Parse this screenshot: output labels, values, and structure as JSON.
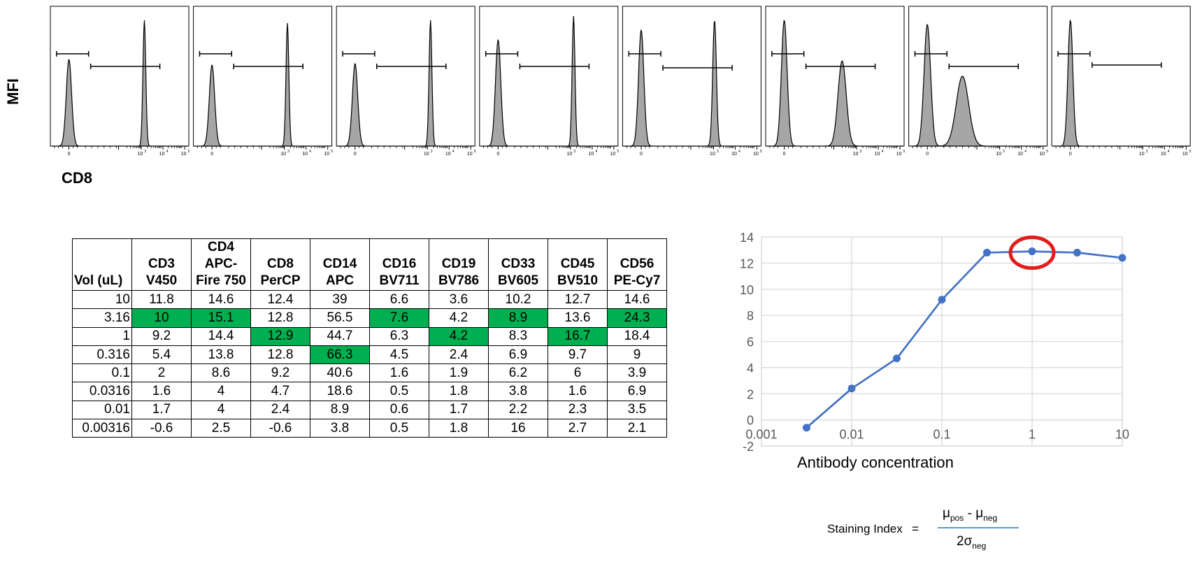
{
  "histograms": {
    "y_label": "MFI",
    "x_label": "CD8",
    "x_tick_labels": [
      "0",
      "10",
      "3",
      "10",
      "4",
      "10",
      "5"
    ],
    "fill_color": "#a6a6a6",
    "panels": [
      {
        "peaks": [
          {
            "x": -0.5,
            "h": 0.62,
            "w": 0.13
          },
          {
            "x": 3.15,
            "h": 0.9,
            "w": 0.07
          }
        ],
        "neg_gate": [
          -1.1,
          0.45
        ],
        "pos_gate": [
          0.55,
          3.9
        ],
        "neg_gate_h": 0.66,
        "pos_gate_h": 0.57
      },
      {
        "peaks": [
          {
            "x": -0.5,
            "h": 0.58,
            "w": 0.13
          },
          {
            "x": 3.15,
            "h": 0.88,
            "w": 0.07
          }
        ],
        "neg_gate": [
          -1.1,
          0.45
        ],
        "pos_gate": [
          0.55,
          3.9
        ],
        "neg_gate_h": 0.66,
        "pos_gate_h": 0.57
      },
      {
        "peaks": [
          {
            "x": -0.5,
            "h": 0.59,
            "w": 0.13
          },
          {
            "x": 3.15,
            "h": 0.9,
            "w": 0.07
          }
        ],
        "neg_gate": [
          -1.1,
          0.45
        ],
        "pos_gate": [
          0.55,
          3.9
        ],
        "neg_gate_h": 0.66,
        "pos_gate_h": 0.57
      },
      {
        "peaks": [
          {
            "x": -0.5,
            "h": 0.76,
            "w": 0.13
          },
          {
            "x": 3.15,
            "h": 0.93,
            "w": 0.07
          }
        ],
        "neg_gate": [
          -1.1,
          0.45
        ],
        "pos_gate": [
          0.55,
          3.9
        ],
        "neg_gate_h": 0.66,
        "pos_gate_h": 0.57
      },
      {
        "peaks": [
          {
            "x": -0.5,
            "h": 0.83,
            "w": 0.13
          },
          {
            "x": 3.05,
            "h": 0.9,
            "w": 0.09
          }
        ],
        "neg_gate": [
          -1.1,
          0.45
        ],
        "pos_gate": [
          0.55,
          3.9
        ],
        "neg_gate_h": 0.66,
        "pos_gate_h": 0.56
      },
      {
        "peaks": [
          {
            "x": -0.5,
            "h": 0.9,
            "w": 0.14
          },
          {
            "x": 2.3,
            "h": 0.61,
            "w": 0.2
          }
        ],
        "neg_gate": [
          -1.1,
          0.45
        ],
        "pos_gate": [
          0.55,
          3.9
        ],
        "neg_gate_h": 0.66,
        "pos_gate_h": 0.57
      },
      {
        "peaks": [
          {
            "x": -0.5,
            "h": 0.87,
            "w": 0.16
          },
          {
            "x": 1.2,
            "h": 0.5,
            "w": 0.3
          }
        ],
        "neg_gate": [
          -1.1,
          0.45
        ],
        "pos_gate": [
          0.55,
          3.9
        ],
        "neg_gate_h": 0.66,
        "pos_gate_h": 0.57
      },
      {
        "peaks": [
          {
            "x": -0.5,
            "h": 0.9,
            "w": 0.12
          }
        ],
        "neg_gate": [
          -1.1,
          0.45
        ],
        "pos_gate": [
          0.55,
          3.9
        ],
        "neg_gate_h": 0.66,
        "pos_gate_h": 0.58
      }
    ]
  },
  "table": {
    "headers": [
      [
        "Vol (uL)"
      ],
      [
        "CD3",
        "V450"
      ],
      [
        "CD4",
        "APC-",
        "Fire 750"
      ],
      [
        "CD8",
        "PerCP"
      ],
      [
        "CD14",
        "APC"
      ],
      [
        "CD16",
        "BV711"
      ],
      [
        "CD19",
        "BV786"
      ],
      [
        "CD33",
        "BV605"
      ],
      [
        "CD45",
        "BV510"
      ],
      [
        "CD56",
        "PE-Cy7"
      ]
    ],
    "rows": [
      [
        "10",
        "11.8",
        "14.6",
        "12.4",
        "39",
        "6.6",
        "3.6",
        "10.2",
        "12.7",
        "14.6"
      ],
      [
        "3.16",
        "10",
        "15.1",
        "12.8",
        "56.5",
        "7.6",
        "4.2",
        "8.9",
        "13.6",
        "24.3"
      ],
      [
        "1",
        "9.2",
        "14.4",
        "12.9",
        "44.7",
        "6.3",
        "4.2",
        "8.3",
        "16.7",
        "18.4"
      ],
      [
        "0.316",
        "5.4",
        "13.8",
        "12.8",
        "66.3",
        "4.5",
        "2.4",
        "6.9",
        "9.7",
        "9"
      ],
      [
        "0.1",
        "2",
        "8.6",
        "9.2",
        "40.6",
        "1.6",
        "1.9",
        "6.2",
        "6",
        "3.9"
      ],
      [
        "0.0316",
        "1.6",
        "4",
        "4.7",
        "18.6",
        "0.5",
        "1.8",
        "3.8",
        "1.6",
        "6.9"
      ],
      [
        "0.01",
        "1.7",
        "4",
        "2.4",
        "8.9",
        "0.6",
        "1.7",
        "2.2",
        "2.3",
        "3.5"
      ],
      [
        "0.00316",
        "-0.6",
        "2.5",
        "-0.6",
        "3.8",
        "0.5",
        "1.8",
        "16",
        "2.7",
        "2.1"
      ]
    ],
    "highlight_color": "#00b050",
    "highlighted": [
      [
        1,
        1
      ],
      [
        1,
        2
      ],
      [
        1,
        5
      ],
      [
        1,
        7
      ],
      [
        1,
        9
      ],
      [
        2,
        3
      ],
      [
        2,
        6
      ],
      [
        2,
        8
      ],
      [
        3,
        4
      ]
    ]
  },
  "chart_data": {
    "type": "line",
    "x_scale": "log",
    "xlabel": "Antibody concentration",
    "ylabel": "",
    "title": "",
    "xlim": [
      0.001,
      10
    ],
    "ylim": [
      -2,
      14
    ],
    "x_ticks": [
      "0.001",
      "0.01",
      "0.1",
      "1",
      "10"
    ],
    "y_ticks": [
      "-2",
      "0",
      "2",
      "4",
      "6",
      "8",
      "10",
      "12",
      "14"
    ],
    "grid": true,
    "legend": "none",
    "series": [
      {
        "x": [
          0.00316,
          0.01,
          0.0316,
          0.1,
          0.316,
          1,
          3.16,
          10
        ],
        "values": [
          -0.6,
          2.4,
          4.7,
          9.2,
          12.8,
          12.9,
          12.8,
          12.4
        ],
        "color": "#4472c4"
      }
    ],
    "annotation": {
      "type": "circle",
      "x": 1,
      "y": 12.9,
      "color": "#e31c1c"
    }
  },
  "formula": {
    "label": "Staining Index",
    "equals": "=",
    "num_a": "μ",
    "num_a_sub": "pos",
    "num_sep": " - ",
    "num_b": "μ",
    "num_b_sub": "neg",
    "den": "2σ",
    "den_sub": "neg"
  }
}
